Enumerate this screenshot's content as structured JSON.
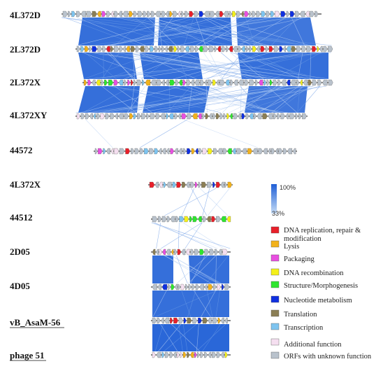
{
  "genomes": [
    {
      "label": "4L372D",
      "underline": false
    },
    {
      "label": "2L372D",
      "underline": false
    },
    {
      "label": "2L372X",
      "underline": false
    },
    {
      "label": "4L372XY",
      "underline": false
    },
    {
      "label": "44572",
      "underline": false
    },
    {
      "label": "4L372X",
      "underline": false
    },
    {
      "label": "44512",
      "underline": false
    },
    {
      "label": "2D05",
      "underline": false
    },
    {
      "label": "4D05",
      "underline": false
    },
    {
      "label": "vB_AsaM-56",
      "underline": true
    },
    {
      "label": "phage 51",
      "underline": true
    }
  ],
  "identity_scale": {
    "max_label": "100%",
    "min_label": "33%",
    "color_high": "#1f5fd6",
    "color_low": "#c6dcf6"
  },
  "legend": [
    {
      "lines": [
        "DNA replication, repair &",
        "modification"
      ],
      "color": "#e8202a"
    },
    {
      "lines": [
        "Lysis"
      ],
      "color": "#f2b21c"
    },
    {
      "lines": [
        "Packaging"
      ],
      "color": "#e84fe0"
    },
    {
      "lines": [
        "DNA recombination"
      ],
      "color": "#f4f01a"
    },
    {
      "lines": [
        "Structure/Morphogenesis"
      ],
      "color": "#2fe62f"
    },
    {
      "lines": [
        "Nucleotide metabolism"
      ],
      "color": "#1030e0"
    },
    {
      "lines": [
        "Translation"
      ],
      "color": "#8b7e55"
    },
    {
      "lines": [
        "Transcription"
      ],
      "color": "#7ec4ef"
    },
    {
      "lines": [
        "Additional function"
      ],
      "color": "#f5dff0"
    },
    {
      "lines": [
        "ORFs with unknown function"
      ],
      "color": "#b9c2cc"
    }
  ]
}
